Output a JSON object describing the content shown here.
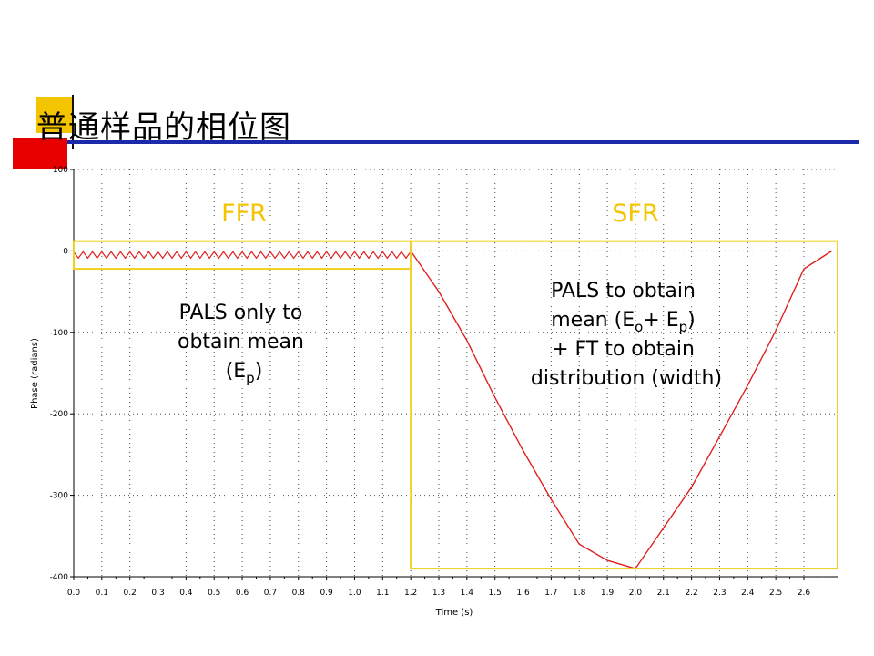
{
  "slide": {
    "title": "普通样品的相位图"
  },
  "colors": {
    "curve": "#e02020",
    "regionBox": "#f0d020",
    "grid": "#000000"
  },
  "chart_data": {
    "type": "line",
    "title": "",
    "xlabel": "Time (s)",
    "ylabel": "Phase (radians)",
    "xlim": [
      0.0,
      2.72
    ],
    "ylim": [
      -400,
      100
    ],
    "xticks": [
      0.0,
      0.1,
      0.2,
      0.3,
      0.4,
      0.5,
      0.6,
      0.7,
      0.8,
      0.9,
      1.0,
      1.1,
      1.2,
      1.3,
      1.4,
      1.5,
      1.6,
      1.7,
      1.8,
      1.9,
      2.0,
      2.1,
      2.2,
      2.3,
      2.4,
      2.5,
      2.6
    ],
    "xticklabels": [
      "0.0",
      "0.1",
      "0.2",
      "0.3",
      "0.4",
      "0.5",
      "0.6",
      "0.7",
      "0.8",
      "0.9",
      "1.0",
      "1.1",
      "1.2",
      "1.3",
      "1.4",
      "1.5",
      "1.6",
      "1.7",
      "1.8",
      "1.9",
      "2.0",
      "2.1",
      "2.2",
      "2.3",
      "2.4",
      "2.5",
      "2.6"
    ],
    "yticks": [
      100,
      0,
      -100,
      -200,
      -300,
      -400
    ],
    "yticklabels": [
      "100",
      "0",
      "-100",
      "-200",
      "-300",
      "-400"
    ],
    "grid": true,
    "ffr_oscillation": {
      "x_start": 0.0,
      "x_end": 1.2,
      "mean": -5,
      "amplitude": 4,
      "cycles": 36
    },
    "series": [
      {
        "x": [
          1.2,
          1.3,
          1.4,
          1.5,
          1.6,
          1.7,
          1.8,
          1.9,
          2.0,
          2.1,
          2.2,
          2.3,
          2.4,
          2.5,
          2.6,
          2.7
        ],
        "y": [
          0,
          -50,
          -110,
          -180,
          -245,
          -305,
          -360,
          -380,
          -390,
          -340,
          -290,
          -228,
          -165,
          -98,
          -22,
          0
        ]
      }
    ],
    "regions": [
      {
        "label": "FFR",
        "x": [
          0.0,
          1.2
        ],
        "y": [
          -22,
          12
        ]
      },
      {
        "label": "SFR",
        "x": [
          1.2,
          2.72
        ],
        "y": [
          -390,
          12
        ]
      }
    ],
    "annotations": {
      "ffr_note": {
        "line1": "PALS only to",
        "line2": "obtain mean",
        "line3_pre": "(E",
        "line3_sub": "p",
        "line3_post": ")"
      },
      "sfr_note": {
        "line1": "PALS to obtain",
        "line2_pre": "mean (E",
        "line2_sub1": "o",
        "line2_mid": "+ E",
        "line2_sub2": "p",
        "line2_post": ")",
        "line3": "+ FT to obtain",
        "line4": "distribution (width)"
      }
    }
  }
}
